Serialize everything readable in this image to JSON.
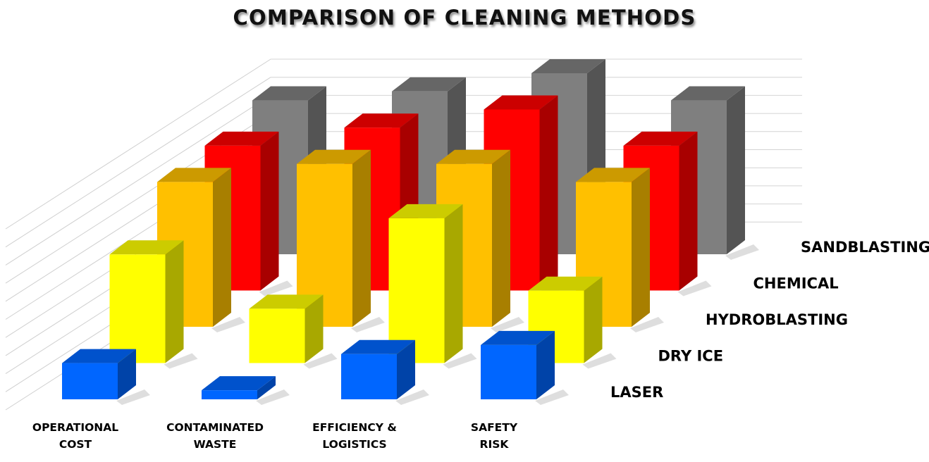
{
  "chart_data": {
    "type": "bar",
    "subtype": "3d-column",
    "title": "COMPARISON OF CLEANING METHODS",
    "categories": [
      "OPERATIONAL COST",
      "CONTAMINATED WASTE",
      "EFFICIENCY & LOGISTICS",
      "SAFETY RISK"
    ],
    "category_lines": [
      [
        "OPERATIONAL",
        "COST"
      ],
      [
        "CONTAMINATED",
        "WASTE"
      ],
      [
        "EFFICIENCY &",
        "LOGISTICS"
      ],
      [
        "SAFETY",
        "RISK"
      ]
    ],
    "series": [
      {
        "name": "LASER",
        "values": [
          2,
          0.5,
          2.5,
          3
        ],
        "color": "#0066FF"
      },
      {
        "name": "DRY ICE",
        "values": [
          6,
          3,
          8,
          4
        ],
        "color": "#FFFF00"
      },
      {
        "name": "HYDROBLASTING",
        "values": [
          8,
          9,
          9,
          8
        ],
        "color": "#FFC000"
      },
      {
        "name": "CHEMICAL",
        "values": [
          8,
          9,
          10,
          8
        ],
        "color": "#FF0000"
      },
      {
        "name": "SANDBLASTING",
        "values": [
          8.5,
          9,
          10,
          8.5
        ],
        "color": "#7F7F7F"
      }
    ],
    "ylim": [
      0,
      10
    ],
    "xlabel": "",
    "ylabel": "",
    "grid": true,
    "legend": "none"
  }
}
